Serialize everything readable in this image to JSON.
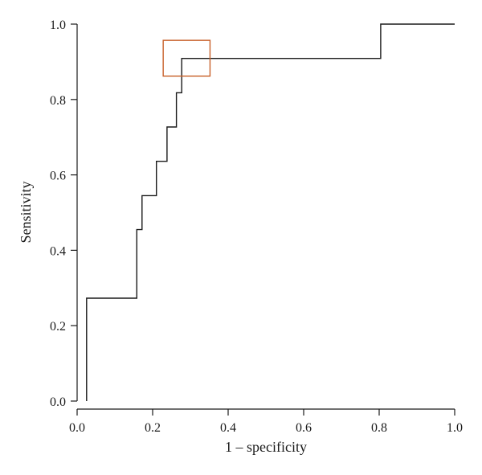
{
  "chart_data": {
    "type": "line",
    "title": "",
    "xlabel": "1 – specificity",
    "ylabel": "Sensitivity",
    "xlim": [
      0.0,
      1.0
    ],
    "ylim": [
      0.0,
      1.0
    ],
    "xticks": [
      "0.0",
      "0.2",
      "0.4",
      "0.6",
      "0.8",
      "1.0"
    ],
    "yticks": [
      "0.0",
      "0.2",
      "0.4",
      "0.6",
      "0.8",
      "1.0"
    ],
    "grid": false,
    "legend": "none",
    "series": [
      {
        "step": "post",
        "x": [
          0.025,
          0.025,
          0.158,
          0.158,
          0.172,
          0.172,
          0.21,
          0.21,
          0.238,
          0.238,
          0.263,
          0.263,
          0.277,
          0.277,
          0.804,
          0.804,
          1.0
        ],
        "y": [
          0.0,
          0.273,
          0.273,
          0.455,
          0.455,
          0.545,
          0.545,
          0.636,
          0.636,
          0.727,
          0.727,
          0.818,
          0.818,
          0.909,
          0.909,
          1.0,
          1.0
        ],
        "color": "#1a1a1a"
      }
    ],
    "highlight_box": {
      "x0": 0.228,
      "x1": 0.352,
      "y0": 0.862,
      "y1": 0.957,
      "color": "#c8602a"
    }
  }
}
